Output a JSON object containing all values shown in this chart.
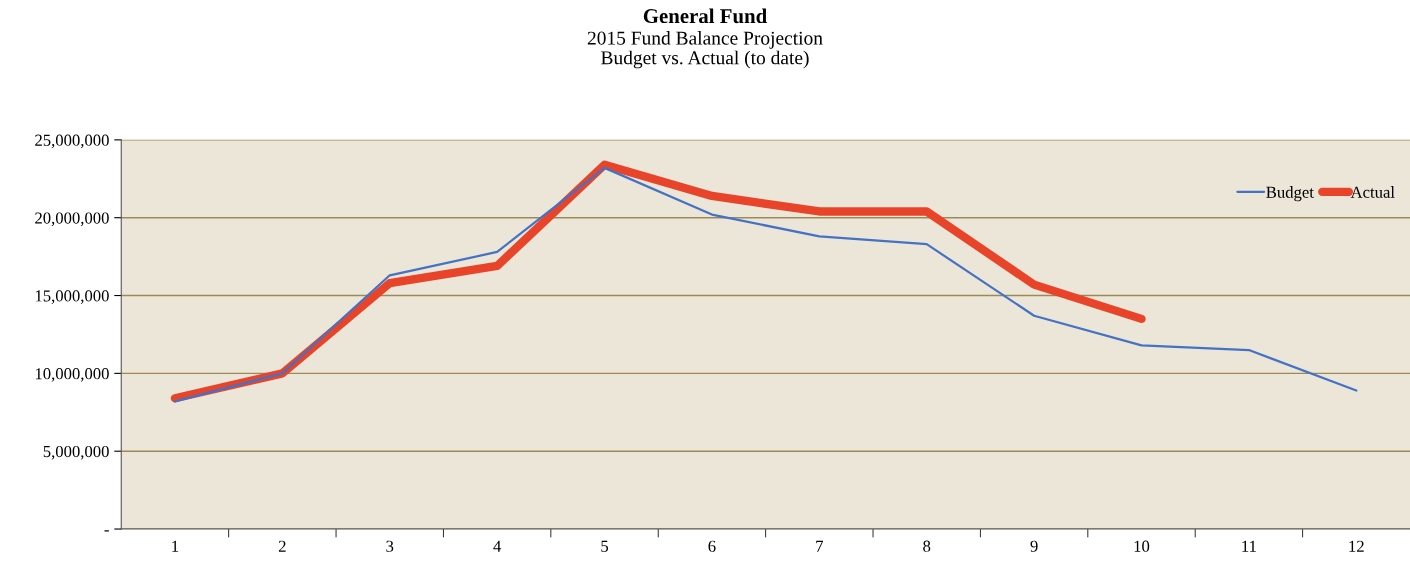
{
  "chart_data": {
    "type": "line",
    "title": "General Fund",
    "subtitle": "2015 Fund Balance Projection\nBudget vs. Actual (to date)",
    "categories": [
      "1",
      "2",
      "3",
      "4",
      "5",
      "6",
      "7",
      "8",
      "9",
      "10",
      "11",
      "12"
    ],
    "series": [
      {
        "name": "Budget",
        "color": "#4472c4",
        "values": [
          8200000,
          10000000,
          16300000,
          17800000,
          23200000,
          20200000,
          18800000,
          18300000,
          13700000,
          11800000,
          11500000,
          8900000
        ]
      },
      {
        "name": "Actual",
        "color": "#e8442a",
        "values": [
          8400000,
          10000000,
          15800000,
          16900000,
          23400000,
          21400000,
          20400000,
          20400000,
          15700000,
          13500000,
          null,
          null
        ]
      }
    ],
    "ylim": [
      0,
      25000000
    ],
    "yticks": [
      {
        "value": 0,
        "label": "-"
      },
      {
        "value": 5000000,
        "label": "5,000,000"
      },
      {
        "value": 10000000,
        "label": "10,000,000"
      },
      {
        "value": 15000000,
        "label": "15,000,000"
      },
      {
        "value": 20000000,
        "label": "20,000,000"
      },
      {
        "value": 25000000,
        "label": "25,000,000"
      }
    ],
    "grid": "y",
    "legend": "top right",
    "marker": "none",
    "line_style": "solid"
  }
}
